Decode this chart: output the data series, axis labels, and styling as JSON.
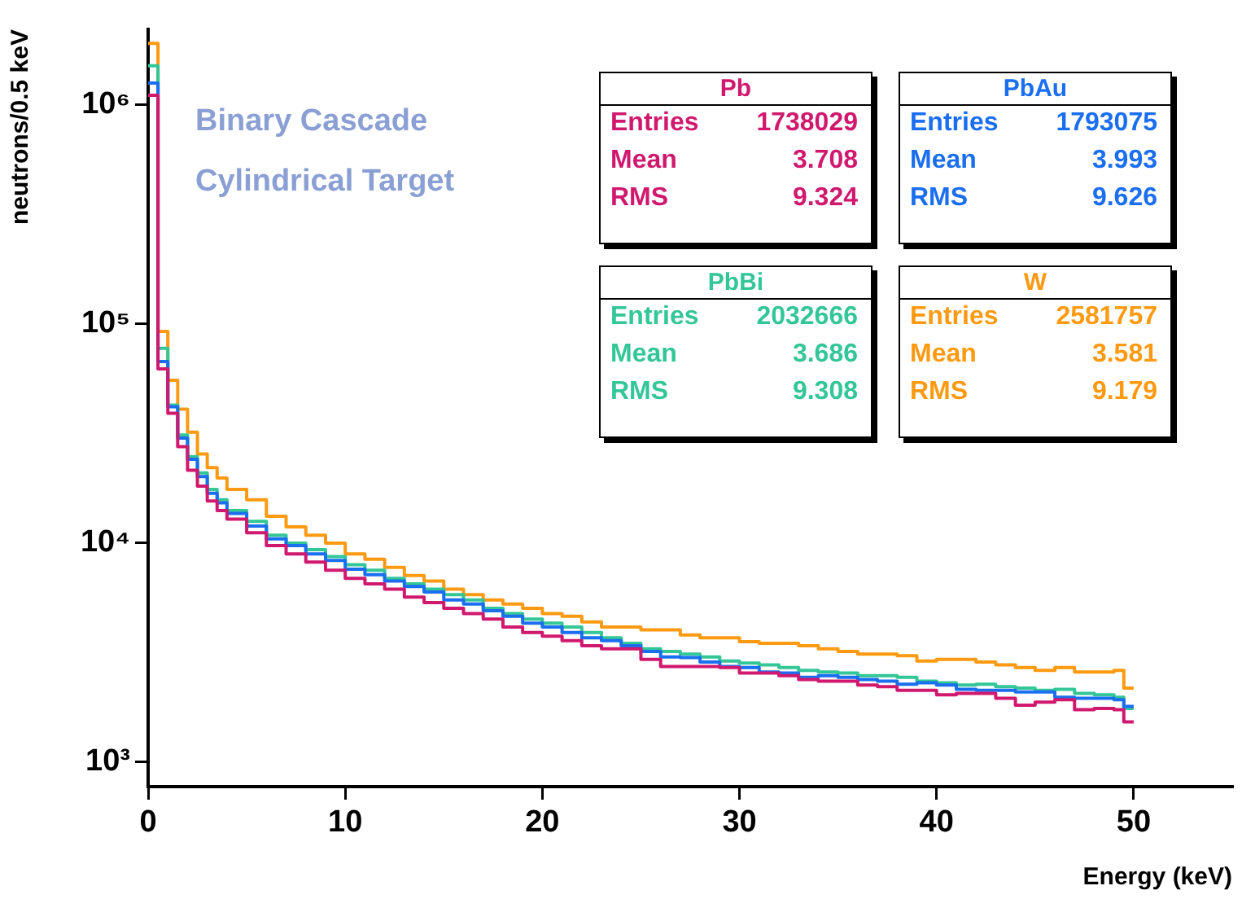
{
  "chart_data": {
    "type": "step",
    "xlabel": "Energy (keV)",
    "ylabel": "neutrons/0.5 keV",
    "annotations": [
      "Binary Cascade",
      "Cylindrical Target",
      "Entries 1738029",
      "Mean 3.708",
      "RMS 9.324",
      "Entries 1793075",
      "Mean 3.993",
      "RMS 9.626",
      "Entries 2032666",
      "Mean 3.686",
      "RMS 9.308",
      "Entries 2581757",
      "Mean 3.581",
      "RMS 9.179"
    ],
    "x": [
      0,
      0.5,
      1,
      1.5,
      2,
      2.5,
      3,
      3.5,
      4,
      5,
      6,
      7,
      8,
      9,
      10,
      11,
      12,
      13,
      14,
      15,
      16,
      17,
      18,
      19,
      20,
      21,
      22,
      23,
      24,
      25,
      26,
      27,
      28,
      29,
      30,
      31,
      32,
      33,
      34,
      35,
      36,
      37,
      38,
      39,
      40,
      41,
      42,
      43,
      44,
      45,
      46,
      47,
      48,
      49,
      49.5,
      50
    ],
    "series": [
      {
        "name": "Pb",
        "color": "#d0196e",
        "values": [
          1100000,
          62000,
          38900,
          27400,
          21400,
          18100,
          15500,
          14000,
          12800,
          11100,
          9700,
          8880,
          8150,
          7480,
          6870,
          6490,
          6130,
          5640,
          5330,
          5020,
          4740,
          4480,
          4120,
          3890,
          3740,
          3570,
          3380,
          3280,
          3280,
          2930,
          2720,
          2720,
          2720,
          2690,
          2540,
          2540,
          2470,
          2370,
          2330,
          2330,
          2240,
          2200,
          2120,
          2120,
          2020,
          2050,
          2050,
          1950,
          1810,
          1870,
          1920,
          1730,
          1750,
          1730,
          1520,
          1520
        ]
      },
      {
        "name": "PbAu",
        "color": "#1a6ef0",
        "values": [
          1250000,
          67000,
          41700,
          30000,
          24000,
          20000,
          16800,
          15200,
          13600,
          11900,
          10400,
          9700,
          8880,
          8300,
          7570,
          7140,
          6680,
          6310,
          5950,
          5480,
          5250,
          4890,
          4610,
          4290,
          4120,
          3890,
          3680,
          3570,
          3380,
          3190,
          3010,
          2990,
          2850,
          2720,
          2690,
          2570,
          2540,
          2430,
          2470,
          2430,
          2370,
          2330,
          2260,
          2290,
          2240,
          2140,
          2120,
          2120,
          2080,
          2080,
          1970,
          1950,
          1950,
          1920,
          1790,
          1790
        ]
      },
      {
        "name": "PbBi",
        "color": "#33c696",
        "values": [
          1500000,
          77000,
          42400,
          31000,
          24700,
          20800,
          17500,
          15700,
          14000,
          12500,
          10800,
          9950,
          9290,
          8630,
          7920,
          7480,
          6870,
          6490,
          6130,
          5790,
          5480,
          5020,
          4740,
          4480,
          4290,
          4120,
          3890,
          3680,
          3470,
          3280,
          3190,
          3100,
          3010,
          2880,
          2820,
          2770,
          2690,
          2610,
          2570,
          2540,
          2470,
          2470,
          2430,
          2330,
          2290,
          2240,
          2260,
          2200,
          2170,
          2120,
          2140,
          2050,
          2020,
          1970,
          1750,
          1750
        ]
      },
      {
        "name": "W",
        "color": "#fd9a12",
        "values": [
          1900000,
          92000,
          55000,
          40600,
          31900,
          25400,
          22000,
          19700,
          17500,
          15700,
          13200,
          11800,
          10800,
          9950,
          8880,
          8390,
          7710,
          7080,
          6680,
          6130,
          5790,
          5480,
          5250,
          5020,
          4740,
          4610,
          4350,
          4120,
          4120,
          4000,
          4000,
          3790,
          3680,
          3680,
          3530,
          3470,
          3470,
          3380,
          3280,
          3190,
          3100,
          3100,
          3050,
          2880,
          2930,
          2930,
          2850,
          2770,
          2690,
          2610,
          2690,
          2570,
          2570,
          2610,
          2170,
          2170
        ]
      }
    ],
    "xlim": [
      0,
      55
    ],
    "xticks": [
      0,
      10,
      20,
      30,
      40,
      50
    ],
    "ylim": [
      770,
      2200000
    ],
    "log": true,
    "yticks": [
      {
        "value": 1000,
        "label": "10³"
      },
      {
        "value": 10000,
        "label": "10⁴"
      },
      {
        "value": 100000,
        "label": "10⁵"
      },
      {
        "value": 1000000,
        "label": "10⁶"
      }
    ],
    "grid": false,
    "legend": "top right"
  }
}
